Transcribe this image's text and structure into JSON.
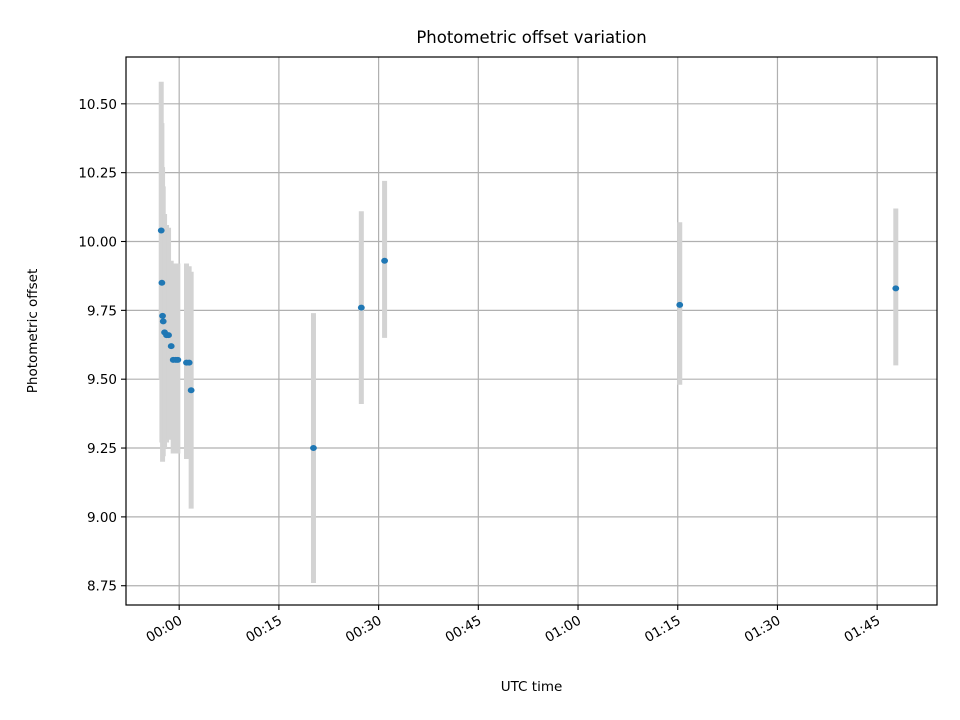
{
  "chart_data": {
    "type": "scatter",
    "title": "Photometric offset variation",
    "xlabel": "UTC time",
    "ylabel": "Photometric offset",
    "x_unit": "minutes",
    "xlim": [
      -8,
      114
    ],
    "ylim": [
      8.68,
      10.67
    ],
    "x_ticks": [
      {
        "value": 0,
        "label": "00:00"
      },
      {
        "value": 15,
        "label": "00:15"
      },
      {
        "value": 30,
        "label": "00:30"
      },
      {
        "value": 45,
        "label": "00:45"
      },
      {
        "value": 60,
        "label": "01:00"
      },
      {
        "value": 75,
        "label": "01:15"
      },
      {
        "value": 90,
        "label": "01:30"
      },
      {
        "value": 105,
        "label": "01:45"
      }
    ],
    "y_ticks": [
      {
        "value": 8.75,
        "label": "8.75"
      },
      {
        "value": 9.0,
        "label": "9.00"
      },
      {
        "value": 9.25,
        "label": "9.25"
      },
      {
        "value": 9.5,
        "label": "9.50"
      },
      {
        "value": 9.75,
        "label": "9.75"
      },
      {
        "value": 10.0,
        "label": "10.00"
      },
      {
        "value": 10.25,
        "label": "10.25"
      },
      {
        "value": 10.5,
        "label": "10.50"
      }
    ],
    "grid": true,
    "marker_color": "#1f77b4",
    "errorbar_color": "#d3d3d3",
    "points": [
      {
        "x": -2.7,
        "y": 10.04,
        "low": 9.5,
        "high": 10.58
      },
      {
        "x": -2.6,
        "y": 9.85,
        "low": 9.27,
        "high": 10.43
      },
      {
        "x": -2.5,
        "y": 9.73,
        "low": 9.2,
        "high": 10.27
      },
      {
        "x": -2.4,
        "y": 9.71,
        "low": 9.22,
        "high": 10.2
      },
      {
        "x": -2.2,
        "y": 9.67,
        "low": 9.25,
        "high": 10.1
      },
      {
        "x": -1.9,
        "y": 9.66,
        "low": 9.27,
        "high": 10.06
      },
      {
        "x": -1.6,
        "y": 9.66,
        "low": 9.28,
        "high": 10.05
      },
      {
        "x": -1.2,
        "y": 9.62,
        "low": 9.3,
        "high": 9.93
      },
      {
        "x": -0.9,
        "y": 9.57,
        "low": 9.23,
        "high": 9.92
      },
      {
        "x": -0.5,
        "y": 9.57,
        "low": 9.23,
        "high": 9.92
      },
      {
        "x": -0.2,
        "y": 9.57,
        "low": 9.23,
        "high": 9.92
      },
      {
        "x": 1.1,
        "y": 9.56,
        "low": 9.21,
        "high": 9.92
      },
      {
        "x": 1.5,
        "y": 9.56,
        "low": 9.21,
        "high": 9.91
      },
      {
        "x": 1.8,
        "y": 9.46,
        "low": 9.03,
        "high": 9.89
      },
      {
        "x": 20.2,
        "y": 9.25,
        "low": 8.76,
        "high": 9.74
      },
      {
        "x": 27.4,
        "y": 9.76,
        "low": 9.41,
        "high": 10.11
      },
      {
        "x": 30.9,
        "y": 9.93,
        "low": 9.65,
        "high": 10.22
      },
      {
        "x": 75.3,
        "y": 9.77,
        "low": 9.48,
        "high": 10.07
      },
      {
        "x": 107.8,
        "y": 9.83,
        "low": 9.55,
        "high": 10.12
      }
    ]
  }
}
